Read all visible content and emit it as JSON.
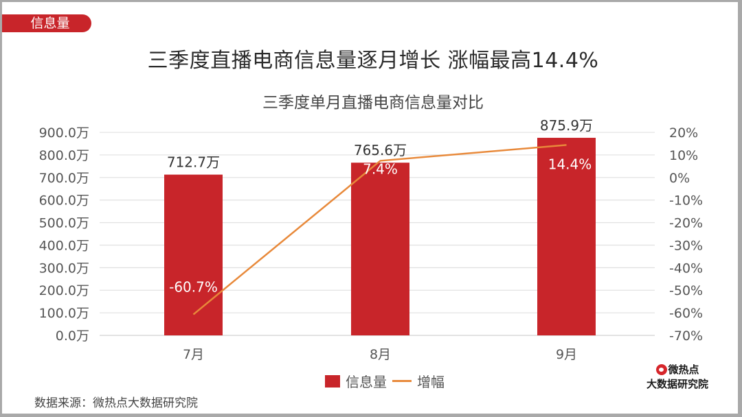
{
  "tag": {
    "label": "信息量"
  },
  "header": {
    "title": "三季度直播电商信息量逐月增长 涨幅最高14.4%",
    "subtitle": "三季度单月直播电商信息量对比"
  },
  "colors": {
    "bar": "#c8252a",
    "line": "#e8893a",
    "tag": "#c8252a",
    "grid": "#e3e3e3"
  },
  "legend": {
    "bar_label": "信息量",
    "line_label": "增幅"
  },
  "source": {
    "text": "数据来源：微热点大数据研究院"
  },
  "logo": {
    "line1": "微热点",
    "line2": "大数据研究院",
    "icon": "weibo-eye-icon"
  },
  "chart_data": {
    "type": "bar",
    "combo": "bar + line (dual axis)",
    "title": "三季度单月直播电商信息量对比",
    "categories": [
      "7月",
      "8月",
      "9月"
    ],
    "series": [
      {
        "name": "信息量",
        "type": "bar",
        "axis": "left",
        "values": [
          712.7,
          765.6,
          875.9
        ],
        "labels": [
          "712.7万",
          "765.6万",
          "875.9万"
        ]
      },
      {
        "name": "增幅",
        "type": "line",
        "axis": "right",
        "values": [
          -60.7,
          7.4,
          14.4
        ],
        "labels": [
          "-60.7%",
          "7.4%",
          "14.4%"
        ]
      }
    ],
    "y_left": {
      "ylim": [
        0,
        900
      ],
      "ticks": [
        "0.0万",
        "100.0万",
        "200.0万",
        "300.0万",
        "400.0万",
        "500.0万",
        "600.0万",
        "700.0万",
        "800.0万",
        "900.0万"
      ]
    },
    "y_right": {
      "ylim": [
        -70,
        20
      ],
      "ticks": [
        "-70%",
        "-60%",
        "-50%",
        "-40%",
        "-30%",
        "-20%",
        "-10%",
        "0%",
        "10%",
        "20%"
      ]
    },
    "xlabel": "",
    "ylabel": "",
    "grid": true,
    "legend_position": "bottom"
  }
}
